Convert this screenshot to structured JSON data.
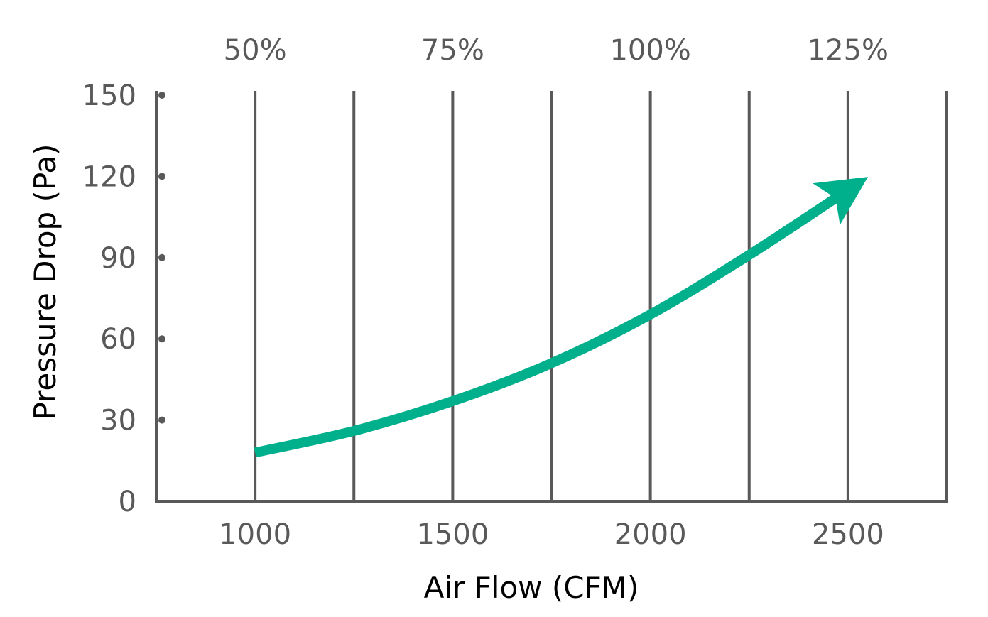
{
  "chart_data": {
    "type": "line",
    "title": "",
    "xlabel": "Air Flow (CFM)",
    "ylabel": "Pressure Drop (Pa)",
    "xlim": [
      750,
      2750
    ],
    "ylim": [
      0,
      150
    ],
    "x_ticks": [
      1000,
      1500,
      2000,
      2500
    ],
    "y_ticks": [
      0,
      30,
      60,
      90,
      120,
      150
    ],
    "x_gridlines": [
      1000,
      1250,
      1500,
      1750,
      2000,
      2250,
      2500,
      2750
    ],
    "top_ticks": [
      {
        "x": 1000,
        "label": "50%"
      },
      {
        "x": 1500,
        "label": "75%"
      },
      {
        "x": 2000,
        "label": "100%"
      },
      {
        "x": 2500,
        "label": "125%"
      }
    ],
    "grid": true,
    "colors": {
      "series": "#00B08C",
      "axis": "#595959",
      "grid": "#595959"
    },
    "series": [
      {
        "x": [
          1000,
          1250,
          1500,
          1750,
          2000,
          2250,
          2500
        ],
        "values": [
          18,
          26,
          37,
          51,
          69,
          91,
          115
        ],
        "end_marker": "arrow"
      }
    ]
  }
}
